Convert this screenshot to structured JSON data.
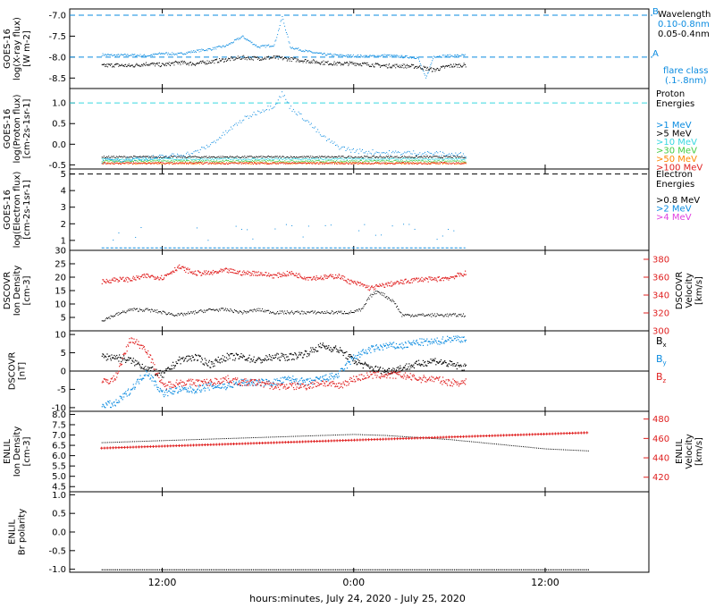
{
  "colors": {
    "black": "#000000",
    "blue": "#0a8be0",
    "cyan": "#38d8e0",
    "green": "#44cc44",
    "orange": "#ff8800",
    "red": "#e02020",
    "magenta": "#e040e0"
  },
  "xaxis": {
    "ticks": [
      {
        "label": "12:00",
        "hour": 12
      },
      {
        "label": "0:00",
        "hour": 24
      },
      {
        "label": "12:00",
        "hour": 36
      }
    ],
    "title": "hours:minutes, July 24, 2020 - July 25, 2020"
  },
  "chart_data": [
    {
      "type": "scatter",
      "panel": "goes-xray",
      "ylabel": [
        "GOES-16",
        "log(X-ray flux)",
        "[W m-2]"
      ],
      "yticks": [
        "-7.0",
        "-7.5",
        "-8.0",
        "-8.5"
      ],
      "ylim": [
        -8.75,
        -6.85
      ],
      "legend_title": "Wavelength",
      "series": [
        {
          "name": "0.10-0.8nm",
          "color": "blue",
          "x": [
            8.2,
            9,
            10,
            11,
            12,
            13,
            14,
            15,
            16,
            17,
            18,
            19,
            19.5,
            20,
            21,
            22,
            23,
            24,
            25,
            26,
            27,
            28,
            28.5,
            29,
            30,
            31
          ],
          "y": [
            -7.93,
            -7.95,
            -7.94,
            -7.96,
            -7.9,
            -7.92,
            -7.85,
            -7.8,
            -7.72,
            -7.5,
            -7.75,
            -7.7,
            -7.03,
            -7.75,
            -7.85,
            -7.92,
            -7.95,
            -7.96,
            -7.97,
            -7.95,
            -7.98,
            -8.0,
            -8.5,
            -7.97,
            -7.96,
            -7.95
          ]
        },
        {
          "name": "0.05-0.4nm",
          "color": "black",
          "x": [
            8.2,
            9,
            10,
            11,
            12,
            13,
            14,
            15,
            16,
            17,
            18,
            19,
            20,
            21,
            22,
            23,
            24,
            25,
            26,
            27,
            28,
            29,
            30,
            31
          ],
          "y": [
            -8.2,
            -8.18,
            -8.2,
            -8.15,
            -8.18,
            -8.12,
            -8.15,
            -8.1,
            -8.05,
            -8.0,
            -8.02,
            -8.0,
            -8.04,
            -8.08,
            -8.12,
            -8.15,
            -8.14,
            -8.17,
            -8.2,
            -8.2,
            -8.22,
            -8.3,
            -8.2,
            -8.18
          ]
        }
      ],
      "ref_lines": [
        {
          "y": -7.0,
          "label": "B"
        },
        {
          "y": -8.0,
          "label": "A"
        }
      ],
      "legend_note": [
        "flare class",
        "(.1-.8nm)"
      ]
    },
    {
      "type": "scatter",
      "panel": "goes-proton",
      "ylabel": [
        "GOES-16",
        "log(Proton flux)",
        "[cm-2s-1sr-1]"
      ],
      "yticks": [
        "1.0",
        "0.5",
        "0.0",
        "-0.5"
      ],
      "ylim": [
        -0.6,
        1.35
      ],
      "legend_title": [
        "Proton",
        "Energies"
      ],
      "ref_lines": [
        {
          "y": 1.0
        }
      ],
      "series": [
        {
          "name": ">1 MeV",
          "color": "blue",
          "x": [
            8.2,
            10,
            12,
            14,
            15,
            16,
            17,
            18,
            19,
            19.5,
            20,
            21,
            22,
            23,
            24,
            26,
            28,
            31
          ],
          "y": [
            -0.4,
            -0.35,
            -0.3,
            -0.2,
            0,
            0.3,
            0.6,
            0.8,
            0.95,
            1.25,
            0.9,
            0.6,
            0.2,
            -0.05,
            -0.15,
            -0.2,
            -0.2,
            -0.25
          ]
        },
        {
          "name": ">5 MeV",
          "color": "black",
          "y_level": -0.3
        },
        {
          "name": ">10 MeV",
          "color": "cyan",
          "y_level": -0.35
        },
        {
          "name": ">30 MeV",
          "color": "green",
          "y_level": -0.4
        },
        {
          "name": ">50 MeV",
          "color": "orange",
          "y_level": -0.45
        },
        {
          "name": ">100 MeV",
          "color": "red",
          "y_level": -0.45
        }
      ]
    },
    {
      "type": "scatter",
      "panel": "goes-electron",
      "ylabel": [
        "GOES-16",
        "log(Electron flux)",
        "[cm-2s-1sr-1]"
      ],
      "yticks": [
        "5",
        "4",
        "3",
        "2",
        "1"
      ],
      "ylim": [
        0.4,
        5.3
      ],
      "legend_title": [
        "Electron",
        "Energies"
      ],
      "ref_lines": [
        {
          "y": 5.0
        }
      ],
      "series": [
        {
          "name": ">0.8 MeV",
          "color": "black"
        },
        {
          "name": ">2 MeV",
          "color": "blue",
          "band": [
            1.0,
            2.0
          ],
          "baseline": 0.55
        },
        {
          "name": ">4 MeV",
          "color": "magenta"
        }
      ]
    },
    {
      "type": "scatter",
      "panel": "dscovr-plasma",
      "ylabel": [
        "DSCOVR",
        "Ion Density",
        "[cm-3]"
      ],
      "yticks": [
        "30",
        "25",
        "20",
        "15",
        "10",
        "5"
      ],
      "ylim": [
        0,
        30
      ],
      "y2label": [
        "DSCOVR",
        "Velocity",
        "[km/s]"
      ],
      "y2ticks": [
        "380",
        "360",
        "340",
        "320",
        "300"
      ],
      "y2lim": [
        300,
        390
      ],
      "series": [
        {
          "name": "Ion Density",
          "color": "black",
          "x": [
            8.2,
            9,
            10,
            11,
            12,
            13,
            14,
            15,
            16,
            17,
            18,
            19,
            20,
            21,
            22,
            23,
            23.8,
            24.5,
            25,
            25.5,
            26,
            26.5,
            27,
            28,
            29,
            30,
            31
          ],
          "y": [
            4,
            6,
            8,
            8,
            7,
            6,
            7,
            8,
            8,
            7,
            8,
            7,
            7,
            7,
            7,
            7,
            7,
            8,
            13,
            15,
            13,
            11,
            6,
            6,
            6,
            6,
            6
          ]
        },
        {
          "name": "Velocity",
          "color": "red",
          "axis": "y2",
          "x": [
            8.2,
            9,
            10,
            11,
            12,
            13,
            14,
            15,
            16,
            17,
            18,
            19,
            20,
            21,
            22,
            23,
            23.8,
            24.5,
            25,
            26,
            27,
            28,
            29,
            30,
            31
          ],
          "y": [
            355,
            358,
            358,
            362,
            360,
            372,
            365,
            365,
            368,
            365,
            365,
            362,
            365,
            360,
            360,
            362,
            355,
            352,
            348,
            352,
            355,
            358,
            358,
            360,
            365
          ]
        }
      ]
    },
    {
      "type": "scatter",
      "panel": "dscovr-mag",
      "ylabel": [
        "DSCOVR",
        "[nT]"
      ],
      "yticks": [
        "10",
        "5",
        "0",
        "-5",
        "-10"
      ],
      "ylim": [
        -11,
        11
      ],
      "series": [
        {
          "name": "Bx",
          "color": "black",
          "x": [
            8.2,
            9,
            10,
            11,
            12,
            13,
            14,
            15,
            16,
            17,
            18,
            19,
            20,
            21,
            22,
            23,
            24,
            25,
            26,
            27,
            28,
            29,
            30,
            31
          ],
          "y": [
            4,
            4,
            3,
            1,
            -1,
            3,
            4,
            2,
            4,
            4,
            3,
            4,
            4,
            5,
            7,
            6,
            3,
            1,
            0,
            1,
            2,
            3,
            2,
            1
          ]
        },
        {
          "name": "By",
          "color": "blue",
          "x": [
            8.2,
            9,
            10,
            11,
            12,
            13,
            14,
            15,
            16,
            17,
            18,
            19,
            20,
            21,
            22,
            23,
            24,
            25,
            26,
            27,
            28,
            29,
            30,
            31
          ],
          "y": [
            -9,
            -9,
            -5,
            0,
            -6,
            -5,
            -5,
            -4,
            -4,
            -3,
            -3,
            -3,
            -2,
            -3,
            -2,
            -1,
            4,
            6,
            7,
            7,
            8,
            8,
            9,
            9
          ]
        },
        {
          "name": "Bz",
          "color": "red",
          "x": [
            8.2,
            9,
            10,
            11,
            12,
            13,
            14,
            15,
            16,
            17,
            18,
            19,
            20,
            21,
            22,
            23,
            24,
            25,
            26,
            27,
            28,
            29,
            30,
            31
          ],
          "y": [
            -3,
            -2,
            9,
            6,
            -4,
            -3,
            -3,
            -3,
            -2,
            -3,
            -3,
            -4,
            -4,
            -4,
            -3,
            -4,
            -2,
            -1,
            -1,
            -1,
            -2,
            -2,
            -3,
            -3
          ]
        }
      ],
      "legend_labels": [
        {
          "base": "B",
          "sub": "x",
          "color": "black"
        },
        {
          "base": "B",
          "sub": "y",
          "color": "blue"
        },
        {
          "base": "B",
          "sub": "z",
          "color": "red"
        }
      ]
    },
    {
      "type": "line",
      "panel": "enlil-plasma",
      "ylabel": [
        "ENLIL",
        "Ion Density",
        "[cm-3]"
      ],
      "yticks": [
        "8.0",
        "7.5",
        "7.0",
        "6.5",
        "6.0",
        "5.5",
        "5.0",
        "4.5"
      ],
      "ylim": [
        4.25,
        8.15
      ],
      "y2label": [
        "ENLIL",
        "Velocity",
        "[km/s]"
      ],
      "y2ticks": [
        "480",
        "460",
        "440",
        "420"
      ],
      "y2lim": [
        405,
        488
      ],
      "series": [
        {
          "name": "Ion Density",
          "color": "black",
          "x": [
            8.2,
            12,
            16,
            20,
            24,
            26,
            28,
            30,
            32,
            34,
            36,
            38.7
          ],
          "y": [
            6.65,
            6.75,
            6.85,
            6.95,
            7.05,
            7.0,
            6.9,
            6.8,
            6.65,
            6.5,
            6.35,
            6.25
          ]
        },
        {
          "name": "Velocity",
          "color": "red",
          "axis": "y2",
          "x": [
            8.2,
            38.7
          ],
          "y": [
            450,
            466
          ]
        }
      ]
    },
    {
      "type": "line",
      "panel": "enlil-polarity",
      "ylabel": [
        "ENLIL",
        "Br polarity"
      ],
      "yticks": [
        "1.0",
        "0.5",
        "0.0",
        "-0.5",
        "-1.0"
      ],
      "ylim": [
        -1.08,
        1.08
      ],
      "series": [
        {
          "name": "Br polarity",
          "color": "black",
          "x": [
            8.2,
            38.7
          ],
          "y": [
            -1.0,
            -1.0
          ]
        }
      ]
    }
  ]
}
